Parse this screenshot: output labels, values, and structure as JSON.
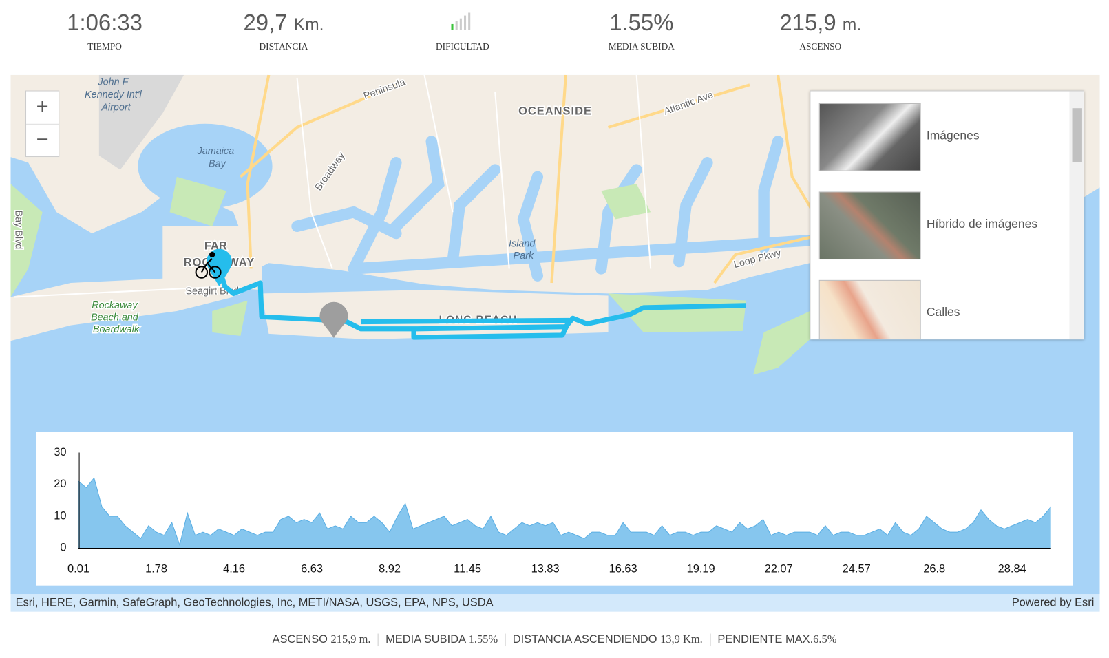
{
  "stats": [
    {
      "value": "1:06:33",
      "label": "TIEMPO"
    },
    {
      "value": "29,7",
      "unit": "Km.",
      "label": "DISTANCIA"
    },
    {
      "label": "DIFICULTAD"
    },
    {
      "value": "1.55%",
      "label": "MEDIA SUBIDA"
    },
    {
      "value": "215,9",
      "unit": "m.",
      "label": "ASCENSO"
    }
  ],
  "map": {
    "zoom_in": "+",
    "zoom_out": "−",
    "labels": [
      "John F",
      "Kennedy Int'l",
      "Airport",
      "Jamaica",
      "Bay",
      "Peninsula",
      "OCEANSIDE",
      "Atlantic Ave",
      "Broadway",
      "Island",
      "Park",
      "FAR",
      "ROCKAWAY",
      "Seagirt Blvd",
      "Rockaway",
      "Beach and",
      "Boardwalk",
      "Loop Pkwy",
      "LONG BEACH",
      "Bay Blvd"
    ],
    "layers": [
      "Imágenes",
      "Híbrido de imágenes",
      "Calles"
    ],
    "attribution": "Esri, HERE, Garmin, SafeGraph, GeoTechnologies, Inc, METI/NASA, USGS, EPA, NPS, USDA",
    "powered_by": "Powered by Esri"
  },
  "chart_data": {
    "type": "area",
    "color": "#86c6ee",
    "categories": [
      "0.01",
      null,
      null,
      null,
      null,
      null,
      null,
      null,
      null,
      null,
      "1.78",
      null,
      null,
      null,
      null,
      null,
      null,
      null,
      null,
      null,
      "4.16",
      null,
      null,
      null,
      null,
      null,
      null,
      null,
      null,
      null,
      "6.63",
      null,
      null,
      null,
      null,
      null,
      null,
      null,
      null,
      null,
      "8.92",
      null,
      null,
      null,
      null,
      null,
      null,
      null,
      null,
      null,
      "11.45",
      null,
      null,
      null,
      null,
      null,
      null,
      null,
      null,
      null,
      "13.83",
      null,
      null,
      null,
      null,
      null,
      null,
      null,
      null,
      null,
      "16.63",
      null,
      null,
      null,
      null,
      null,
      null,
      null,
      null,
      null,
      "19.19",
      null,
      null,
      null,
      null,
      null,
      null,
      null,
      null,
      null,
      "22.07",
      null,
      null,
      null,
      null,
      null,
      null,
      null,
      null,
      null,
      "24.57",
      null,
      null,
      null,
      null,
      null,
      null,
      null,
      null,
      null,
      "26.8",
      null,
      null,
      null,
      null,
      null,
      null,
      null,
      null,
      null,
      "28.84",
      null,
      null,
      null,
      null,
      null
    ],
    "values": [
      21,
      19,
      22,
      13,
      10,
      10,
      7,
      5,
      3,
      7,
      5,
      4,
      8,
      1,
      11,
      4,
      5,
      4,
      6,
      5,
      4,
      6,
      5,
      4,
      5,
      5,
      9,
      10,
      8,
      9,
      8,
      11,
      6,
      7,
      6,
      10,
      8,
      8,
      10,
      8,
      5,
      10,
      14,
      6,
      7,
      8,
      9,
      10,
      7,
      8,
      9,
      7,
      6,
      10,
      5,
      4,
      6,
      8,
      7,
      8,
      7,
      8,
      4,
      5,
      4,
      3,
      5,
      5,
      4,
      4,
      8,
      5,
      5,
      5,
      4,
      7,
      4,
      5,
      5,
      4,
      5,
      5,
      7,
      6,
      5,
      8,
      6,
      7,
      9,
      4,
      5,
      4,
      5,
      5,
      5,
      4,
      7,
      4,
      5,
      5,
      4,
      4,
      5,
      6,
      4,
      8,
      5,
      4,
      6,
      10,
      8,
      6,
      5,
      5,
      6,
      8,
      12,
      9,
      7,
      6,
      7,
      8,
      9,
      8,
      10,
      13
    ],
    "ylim": [
      0,
      30
    ],
    "yticks": [
      0,
      10,
      20,
      30
    ]
  },
  "summary": [
    {
      "label": "ASCENSO",
      "value": "215,9 m."
    },
    {
      "label": "MEDIA SUBIDA",
      "value": "1.55%"
    },
    {
      "label": "DISTANCIA ASCENDIENDO",
      "value": "13,9 Km."
    },
    {
      "label": "PENDIENTE MAX.",
      "value": "6.5%"
    }
  ]
}
